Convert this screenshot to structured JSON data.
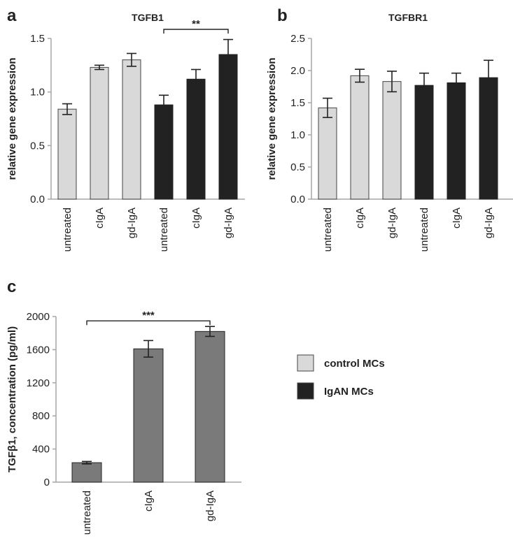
{
  "panels": [
    {
      "letter": "a"
    },
    {
      "letter": "b"
    },
    {
      "letter": "c"
    }
  ],
  "legend": {
    "items": [
      {
        "label": "control MCs",
        "color": "#d9d9d9"
      },
      {
        "label": "IgAN MCs",
        "color": "#222222"
      }
    ]
  },
  "colors": {
    "control": "#d9d9d9",
    "igan": "#222222",
    "secreted": "#7a7a7a",
    "axis": "#a6a6a6"
  },
  "chart_data": [
    {
      "type": "bar",
      "title": "TGFB1",
      "ylabel": "relative gene expression",
      "ylim": [
        0,
        1.5
      ],
      "yticks": [
        "0.0",
        "0.5",
        "1.0",
        "1.5"
      ],
      "categories": [
        "untreated",
        "cIgA",
        "gd-IgA",
        "untreated",
        "cIgA",
        "gd-IgA"
      ],
      "values": [
        0.84,
        1.23,
        1.3,
        0.88,
        1.12,
        1.35
      ],
      "errors": [
        0.05,
        0.02,
        0.06,
        0.09,
        0.09,
        0.14
      ],
      "groups": [
        "control",
        "control",
        "control",
        "igan",
        "igan",
        "igan"
      ],
      "significance": [
        {
          "from": 3,
          "to": 5,
          "label": "**"
        }
      ]
    },
    {
      "type": "bar",
      "title": "TGFBR1",
      "ylabel": "relative gene expression",
      "ylim": [
        0,
        2.5
      ],
      "yticks": [
        "0.0",
        "0.5",
        "1.0",
        "1.5",
        "2.0",
        "2.5"
      ],
      "categories": [
        "untreated",
        "cIgA",
        "gd-IgA",
        "untreated",
        "cIgA",
        "gd-IgA"
      ],
      "values": [
        1.42,
        1.92,
        1.83,
        1.77,
        1.81,
        1.89
      ],
      "errors": [
        0.15,
        0.1,
        0.16,
        0.19,
        0.15,
        0.27
      ],
      "groups": [
        "control",
        "control",
        "control",
        "igan",
        "igan",
        "igan"
      ],
      "significance": []
    },
    {
      "type": "bar",
      "title": "",
      "ylabel": "TGFβ1, concentration (pg/ml)",
      "ylim": [
        0,
        2000
      ],
      "yticks": [
        "0",
        "400",
        "800",
        "1200",
        "1600",
        "2000"
      ],
      "categories": [
        "untreated",
        "cIgA",
        "gd-IgA"
      ],
      "values": [
        235,
        1610,
        1820
      ],
      "errors": [
        15,
        100,
        60
      ],
      "groups": [
        "secreted",
        "secreted",
        "secreted"
      ],
      "significance": [
        {
          "from": 0,
          "to": 2,
          "label": "***"
        }
      ]
    }
  ]
}
